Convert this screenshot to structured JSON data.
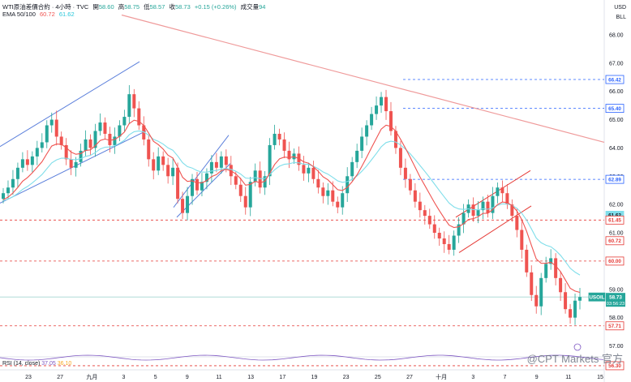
{
  "header": {
    "symbol": "WTI原油差價合約 · 4小時 · TVC",
    "o_label": "開",
    "o": "58.60",
    "h_label": "高",
    "h": "58.75",
    "l_label": "低",
    "l": "58.57",
    "c_label": "收",
    "c": "58.73",
    "change": "+0.15 (+0.26%)",
    "vol_label": "成交量",
    "vol": "94",
    "ema_label": "EMA 50/100",
    "ema50": "60.72",
    "ema100": "61.62"
  },
  "axis_unit": {
    "currency": "USD",
    "unit": "BLL"
  },
  "rsi": {
    "label": "RSI (14, close)",
    "v1": "37.05",
    "v2": "36.10"
  },
  "watermark": "@CPT Markets 官方",
  "colors": {
    "up": "#26a69a",
    "down": "#ef5350",
    "ema50": "#ef5350",
    "ema100": "#80deea",
    "trend": "#ef9a9a",
    "channel": "#5b7fdb",
    "level": "#e53935",
    "blue_level": "#2962ff",
    "usoil": "#26a69a"
  },
  "chart_data": {
    "type": "candlestick",
    "y_ticks": [
      68.0,
      67.0,
      66.0,
      65.0,
      64.0,
      63.0,
      62.0,
      61.0,
      59.0,
      58.0,
      57.0
    ],
    "y_range": [
      56.9,
      68.6
    ],
    "x_ticks": [
      "23",
      "27",
      "九月",
      "3",
      "5",
      "9",
      "11",
      "13",
      "17",
      "19",
      "23",
      "25",
      "27",
      "十月",
      "3",
      "7",
      "9",
      "11",
      "15"
    ],
    "blue_levels": [
      66.42,
      65.4,
      62.89
    ],
    "red_levels": [
      61.45,
      60.0,
      57.71,
      56.3,
      55.0
    ],
    "badges": [
      {
        "label": "66.42",
        "value": 66.42,
        "kind": "blue"
      },
      {
        "label": "65.40",
        "value": 65.4,
        "kind": "blue"
      },
      {
        "label": "62.89",
        "value": 62.89,
        "kind": "blue"
      },
      {
        "label": "61.62",
        "value": 61.62,
        "kind": "ema100"
      },
      {
        "label": "61.45",
        "value": 61.45,
        "kind": "red"
      },
      {
        "label": "60.72",
        "value": 60.72,
        "kind": "red"
      },
      {
        "label": "60.00",
        "value": 60.0,
        "kind": "red"
      },
      {
        "label": "USOIL",
        "value": 58.73,
        "kind": "usoil"
      },
      {
        "label": "57.71",
        "value": 57.71,
        "kind": "red"
      },
      {
        "label": "56.30",
        "value": 56.3,
        "kind": "red"
      }
    ],
    "last": {
      "price": "58.73",
      "countdown": "03:56:23"
    },
    "candles": [
      62.4,
      62.6,
      62.9,
      63.3,
      63.6,
      63.4,
      63.7,
      64.0,
      64.2,
      64.8,
      65.0,
      64.4,
      64.1,
      63.6,
      63.3,
      63.5,
      63.9,
      64.3,
      64.0,
      64.6,
      64.9,
      64.5,
      64.1,
      64.4,
      64.8,
      65.1,
      65.9,
      65.4,
      64.8,
      64.3,
      63.6,
      63.2,
      63.7,
      63.4,
      63.0,
      63.3,
      62.2,
      61.7,
      62.3,
      62.9,
      62.5,
      62.8,
      63.1,
      63.5,
      63.3,
      63.7,
      63.4,
      63.0,
      62.7,
      62.3,
      61.9,
      62.8,
      63.2,
      62.6,
      63.0,
      64.1,
      64.5,
      64.3,
      63.9,
      63.6,
      63.8,
      63.4,
      63.1,
      63.3,
      62.9,
      62.6,
      62.3,
      62.5,
      62.1,
      61.9,
      62.4,
      63.0,
      63.5,
      63.9,
      64.4,
      64.8,
      65.2,
      65.5,
      65.8,
      65.3,
      64.6,
      64.0,
      63.3,
      62.9,
      62.5,
      62.1,
      61.8,
      61.6,
      61.3,
      61.0,
      60.8,
      60.6,
      60.4,
      60.9,
      61.3,
      61.7,
      62.0,
      61.6,
      61.8,
      62.1,
      61.7,
      62.3,
      62.6,
      62.4,
      62.0,
      61.6,
      61.1,
      60.4,
      59.6,
      58.8,
      58.4,
      59.4,
      59.9,
      60.1,
      59.4,
      58.9,
      58.3,
      58.0,
      58.6,
      58.73
    ]
  }
}
